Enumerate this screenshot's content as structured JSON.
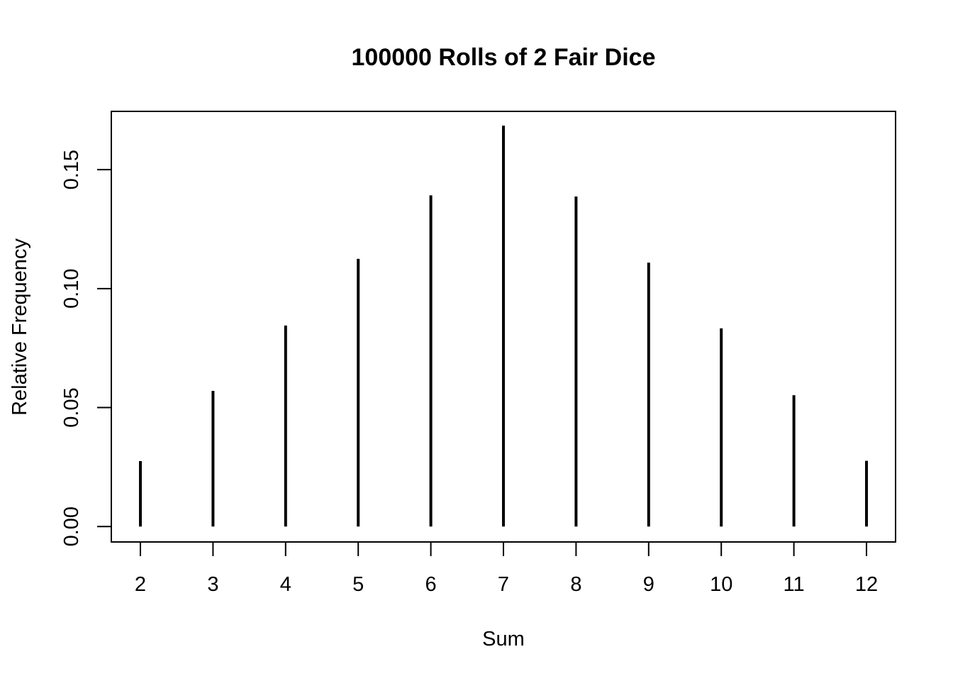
{
  "chart_data": {
    "type": "bar",
    "style": "spike",
    "title": "100000 Rolls of 2 Fair Dice",
    "xlabel": "Sum",
    "ylabel": "Relative Frequency",
    "categories": [
      "2",
      "3",
      "4",
      "5",
      "6",
      "7",
      "8",
      "9",
      "10",
      "11",
      "12"
    ],
    "values": [
      0.0275,
      0.057,
      0.0845,
      0.1125,
      0.1392,
      0.1685,
      0.1387,
      0.1109,
      0.0833,
      0.0552,
      0.0276
    ],
    "ylim": [
      -0.0065,
      0.1745
    ],
    "yticks": [
      0.0,
      0.05,
      0.1,
      0.15
    ],
    "ytick_labels": [
      "0.00",
      "0.05",
      "0.10",
      "0.15"
    ],
    "grid": false,
    "legend": "none",
    "colors": {
      "bars": "#000000",
      "axes": "#000000",
      "background": "#ffffff"
    }
  }
}
